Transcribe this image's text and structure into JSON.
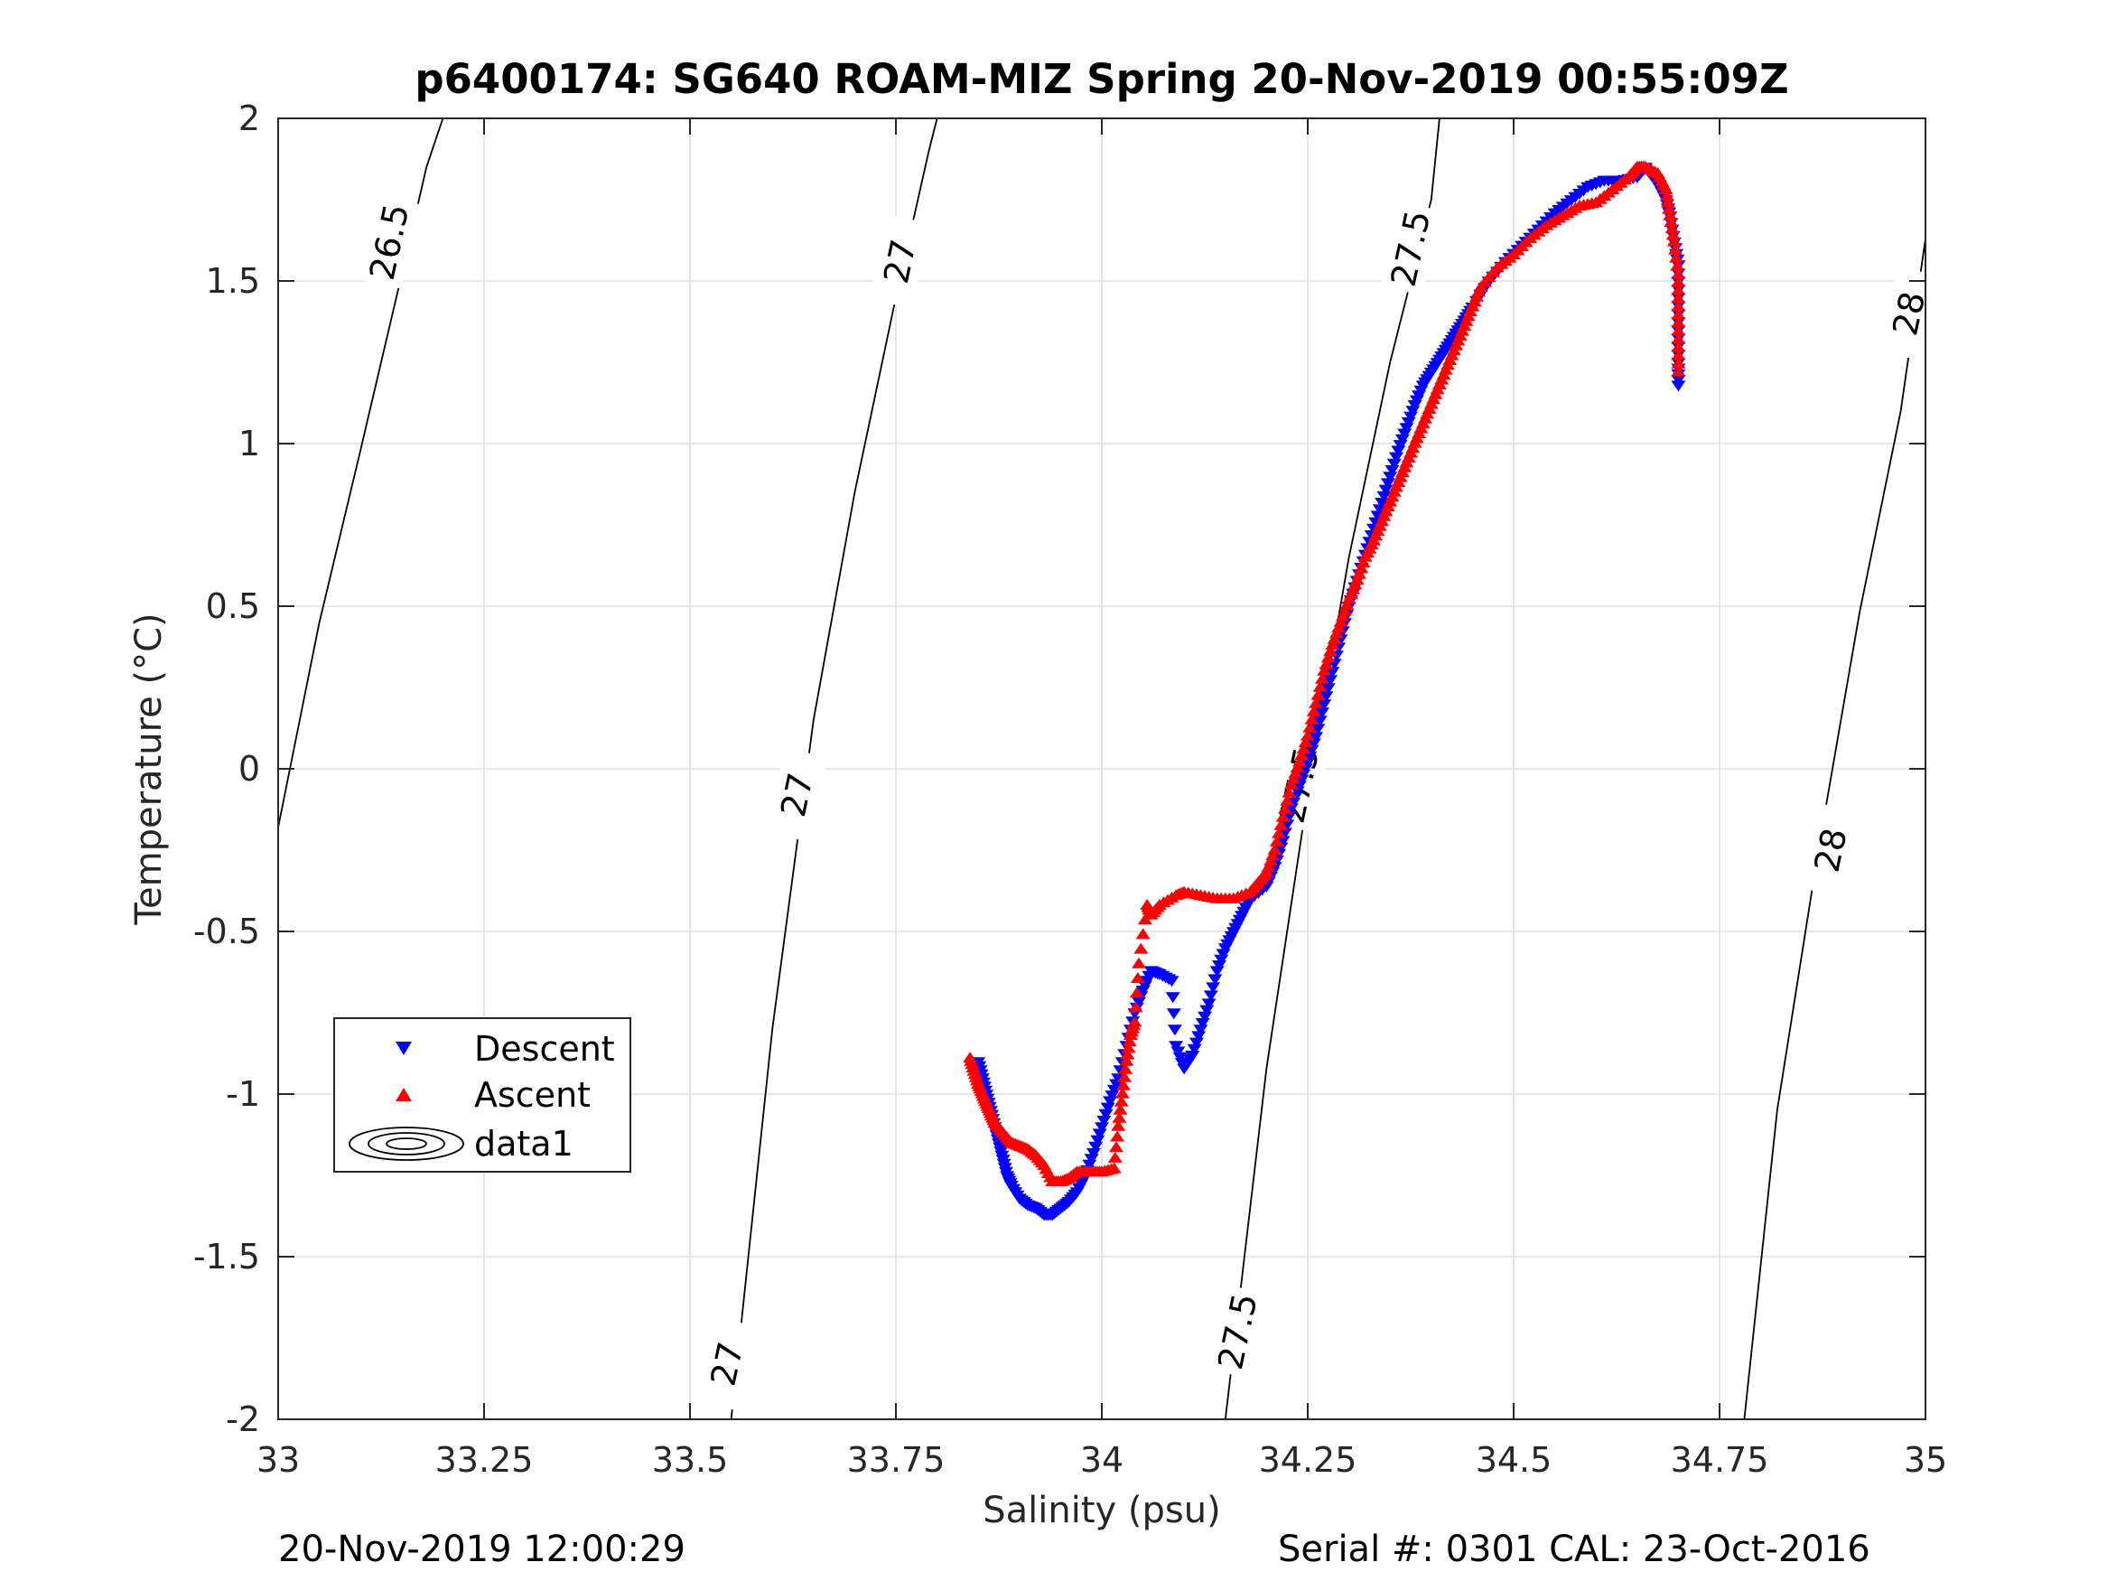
{
  "footer": {
    "left": "20-Nov-2019 12:00:29",
    "right": "Serial #: 0301  CAL: 23-Oct-2016"
  },
  "chart_data": {
    "type": "scatter",
    "title": "p6400174: SG640 ROAM-MIZ Spring 20-Nov-2019 00:55:09Z",
    "xlabel": "Salinity (psu)",
    "ylabel": "Temperature (°C)",
    "xlim": [
      33,
      35
    ],
    "ylim": [
      -2,
      2
    ],
    "xticks": [
      33,
      33.25,
      33.5,
      33.75,
      34,
      34.25,
      34.5,
      34.75,
      35
    ],
    "xtick_labels": [
      "33",
      "33.25",
      "33.5",
      "33.75",
      "34",
      "34.25",
      "34.5",
      "34.75",
      "35"
    ],
    "yticks": [
      -2,
      -1.5,
      -1,
      -0.5,
      0,
      0.5,
      1,
      1.5,
      2
    ],
    "ytick_labels": [
      "-2",
      "-1.5",
      "-1",
      "-0.5",
      "0",
      "0.5",
      "1",
      "1.5",
      "2"
    ],
    "grid": true,
    "legend_position": "lower-left",
    "series": [
      {
        "name": "Descent",
        "marker": "triangle-down",
        "color": "#0000ff",
        "points": [
          [
            33.85,
            -0.9
          ],
          [
            33.855,
            -0.95
          ],
          [
            33.86,
            -1.0
          ],
          [
            33.865,
            -1.05
          ],
          [
            33.87,
            -1.1
          ],
          [
            33.875,
            -1.15
          ],
          [
            33.88,
            -1.2
          ],
          [
            33.885,
            -1.25
          ],
          [
            33.89,
            -1.28
          ],
          [
            33.9,
            -1.32
          ],
          [
            33.91,
            -1.34
          ],
          [
            33.92,
            -1.35
          ],
          [
            33.93,
            -1.37
          ],
          [
            33.94,
            -1.37
          ],
          [
            33.95,
            -1.35
          ],
          [
            33.96,
            -1.33
          ],
          [
            33.97,
            -1.3
          ],
          [
            33.98,
            -1.25
          ],
          [
            33.99,
            -1.18
          ],
          [
            34.0,
            -1.1
          ],
          [
            34.01,
            -1.02
          ],
          [
            34.02,
            -0.95
          ],
          [
            34.03,
            -0.85
          ],
          [
            34.04,
            -0.75
          ],
          [
            34.05,
            -0.68
          ],
          [
            34.06,
            -0.62
          ],
          [
            34.07,
            -0.63
          ],
          [
            34.085,
            -0.65
          ],
          [
            34.09,
            -0.85
          ],
          [
            34.1,
            -0.92
          ],
          [
            34.11,
            -0.88
          ],
          [
            34.12,
            -0.8
          ],
          [
            34.13,
            -0.72
          ],
          [
            34.14,
            -0.62
          ],
          [
            34.15,
            -0.55
          ],
          [
            34.16,
            -0.5
          ],
          [
            34.17,
            -0.45
          ],
          [
            34.18,
            -0.4
          ],
          [
            34.2,
            -0.36
          ],
          [
            34.21,
            -0.3
          ],
          [
            34.22,
            -0.22
          ],
          [
            34.23,
            -0.12
          ],
          [
            34.24,
            -0.05
          ],
          [
            34.25,
            0.02
          ],
          [
            34.26,
            0.1
          ],
          [
            34.27,
            0.2
          ],
          [
            34.28,
            0.3
          ],
          [
            34.29,
            0.4
          ],
          [
            34.3,
            0.5
          ],
          [
            34.31,
            0.58
          ],
          [
            34.32,
            0.66
          ],
          [
            34.33,
            0.74
          ],
          [
            34.34,
            0.82
          ],
          [
            34.35,
            0.9
          ],
          [
            34.36,
            0.98
          ],
          [
            34.37,
            1.05
          ],
          [
            34.38,
            1.12
          ],
          [
            34.39,
            1.18
          ],
          [
            34.4,
            1.22
          ],
          [
            34.41,
            1.26
          ],
          [
            34.42,
            1.3
          ],
          [
            34.43,
            1.34
          ],
          [
            34.44,
            1.38
          ],
          [
            34.45,
            1.42
          ],
          [
            34.47,
            1.5
          ],
          [
            34.49,
            1.56
          ],
          [
            34.51,
            1.61
          ],
          [
            34.53,
            1.66
          ],
          [
            34.55,
            1.71
          ],
          [
            34.57,
            1.75
          ],
          [
            34.59,
            1.79
          ],
          [
            34.61,
            1.81
          ],
          [
            34.63,
            1.81
          ],
          [
            34.65,
            1.82
          ],
          [
            34.66,
            1.85
          ],
          [
            34.675,
            1.8
          ],
          [
            34.685,
            1.75
          ],
          [
            34.69,
            1.7
          ],
          [
            34.695,
            1.62
          ],
          [
            34.7,
            1.55
          ],
          [
            34.7,
            1.45
          ],
          [
            34.7,
            1.35
          ],
          [
            34.7,
            1.25
          ],
          [
            34.7,
            1.18
          ]
        ]
      },
      {
        "name": "Ascent",
        "marker": "triangle-up",
        "color": "#ff0000",
        "points": [
          [
            33.84,
            -0.89
          ],
          [
            33.845,
            -0.93
          ],
          [
            33.85,
            -0.97
          ],
          [
            33.855,
            -1.0
          ],
          [
            33.86,
            -1.03
          ],
          [
            33.865,
            -1.06
          ],
          [
            33.87,
            -1.09
          ],
          [
            33.88,
            -1.12
          ],
          [
            33.89,
            -1.15
          ],
          [
            33.9,
            -1.16
          ],
          [
            33.91,
            -1.17
          ],
          [
            33.92,
            -1.19
          ],
          [
            33.93,
            -1.22
          ],
          [
            33.94,
            -1.27
          ],
          [
            33.95,
            -1.27
          ],
          [
            33.96,
            -1.26
          ],
          [
            33.97,
            -1.24
          ],
          [
            33.98,
            -1.24
          ],
          [
            33.99,
            -1.24
          ],
          [
            34.0,
            -1.24
          ],
          [
            34.015,
            -1.23
          ],
          [
            34.02,
            -1.1
          ],
          [
            34.025,
            -1.0
          ],
          [
            34.03,
            -0.9
          ],
          [
            34.035,
            -0.82
          ],
          [
            34.04,
            -0.78
          ],
          [
            34.045,
            -0.6
          ],
          [
            34.055,
            -0.42
          ],
          [
            34.06,
            -0.45
          ],
          [
            34.07,
            -0.42
          ],
          [
            34.09,
            -0.39
          ],
          [
            34.1,
            -0.38
          ],
          [
            34.12,
            -0.39
          ],
          [
            34.14,
            -0.4
          ],
          [
            34.16,
            -0.4
          ],
          [
            34.18,
            -0.38
          ],
          [
            34.19,
            -0.35
          ],
          [
            34.2,
            -0.32
          ],
          [
            34.21,
            -0.25
          ],
          [
            34.22,
            -0.15
          ],
          [
            34.23,
            -0.05
          ],
          [
            34.24,
            0.02
          ],
          [
            34.25,
            0.1
          ],
          [
            34.26,
            0.2
          ],
          [
            34.27,
            0.3
          ],
          [
            34.28,
            0.38
          ],
          [
            34.29,
            0.45
          ],
          [
            34.3,
            0.52
          ],
          [
            34.31,
            0.58
          ],
          [
            34.32,
            0.65
          ],
          [
            34.33,
            0.7
          ],
          [
            34.34,
            0.76
          ],
          [
            34.35,
            0.82
          ],
          [
            34.36,
            0.88
          ],
          [
            34.37,
            0.94
          ],
          [
            34.38,
            1.0
          ],
          [
            34.39,
            1.06
          ],
          [
            34.4,
            1.12
          ],
          [
            34.41,
            1.18
          ],
          [
            34.42,
            1.24
          ],
          [
            34.43,
            1.3
          ],
          [
            34.44,
            1.36
          ],
          [
            34.45,
            1.42
          ],
          [
            34.46,
            1.48
          ],
          [
            34.48,
            1.54
          ],
          [
            34.5,
            1.58
          ],
          [
            34.52,
            1.63
          ],
          [
            34.54,
            1.67
          ],
          [
            34.56,
            1.7
          ],
          [
            34.58,
            1.73
          ],
          [
            34.6,
            1.74
          ],
          [
            34.62,
            1.78
          ],
          [
            34.64,
            1.82
          ],
          [
            34.65,
            1.85
          ],
          [
            34.66,
            1.85
          ],
          [
            34.675,
            1.83
          ],
          [
            34.685,
            1.78
          ],
          [
            34.69,
            1.7
          ],
          [
            34.695,
            1.62
          ],
          [
            34.7,
            1.52
          ],
          [
            34.7,
            1.42
          ],
          [
            34.7,
            1.32
          ],
          [
            34.7,
            1.22
          ]
        ]
      },
      {
        "name": "data1",
        "type": "contour",
        "color": "#000000",
        "levels": [
          {
            "value": 26.5,
            "label": "26.5",
            "label_positions": [
              [
                33.135,
                1.62
              ]
            ],
            "points": [
              [
                33.0,
                -0.18
              ],
              [
                33.05,
                0.45
              ],
              [
                33.1,
                0.98
              ],
              [
                33.15,
                1.52
              ],
              [
                33.18,
                1.85
              ],
              [
                33.2,
                2.0
              ]
            ]
          },
          {
            "value": 27,
            "label": "27",
            "label_positions": [
              [
                33.545,
                -1.83
              ],
              [
                33.63,
                -0.08
              ],
              [
                33.755,
                1.56
              ]
            ],
            "points": [
              [
                33.55,
                -2.0
              ],
              [
                33.6,
                -0.8
              ],
              [
                33.65,
                0.15
              ],
              [
                33.7,
                0.85
              ],
              [
                33.75,
                1.45
              ],
              [
                33.79,
                1.9
              ],
              [
                33.8,
                2.0
              ]
            ]
          },
          {
            "value": 27.5,
            "label": "27.5",
            "label_positions": [
              [
                34.165,
                -1.73
              ],
              [
                34.24,
                -0.05
              ],
              [
                34.375,
                1.6
              ]
            ],
            "points": [
              [
                34.15,
                -2.0
              ],
              [
                34.2,
                -0.92
              ],
              [
                34.25,
                -0.08
              ],
              [
                34.3,
                0.65
              ],
              [
                34.35,
                1.25
              ],
              [
                34.4,
                1.75
              ],
              [
                34.41,
                2.0
              ]
            ]
          },
          {
            "value": 28,
            "label": "28",
            "label_positions": [
              [
                34.885,
                -0.25
              ],
              [
                34.98,
                1.4
              ]
            ],
            "points": [
              [
                34.78,
                -2.0
              ],
              [
                34.82,
                -1.05
              ],
              [
                34.87,
                -0.25
              ],
              [
                34.92,
                0.48
              ],
              [
                34.97,
                1.1
              ],
              [
                35.0,
                1.63
              ]
            ]
          }
        ]
      }
    ]
  }
}
